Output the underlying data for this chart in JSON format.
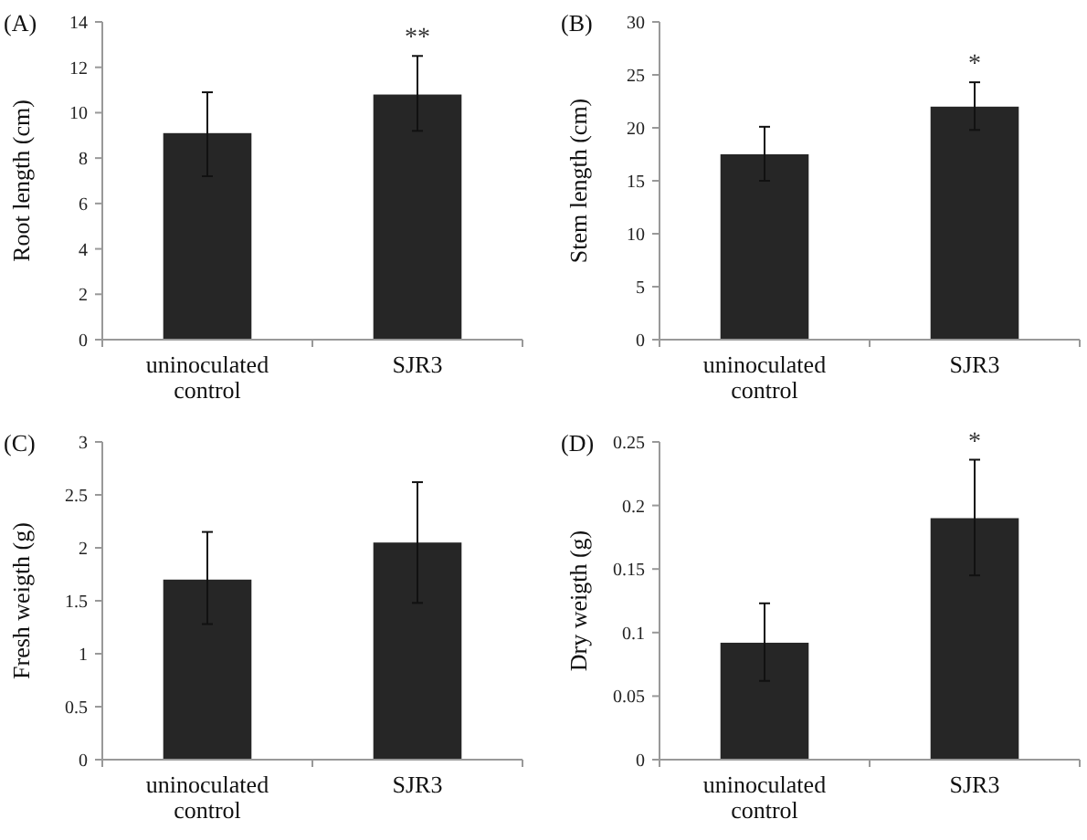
{
  "chart_data": [
    {
      "type": "bar",
      "title": "(A)",
      "ylabel": "Root length (cm)",
      "categories": [
        "uninoculated control",
        "SJR3"
      ],
      "values": [
        9.1,
        10.8
      ],
      "errors": [
        [
          7.2,
          10.9
        ],
        [
          9.2,
          12.5
        ]
      ],
      "color": "#262626",
      "ylim": [
        0,
        14
      ],
      "yticks": [
        0,
        2,
        4,
        6,
        8,
        10,
        12,
        14
      ],
      "annotations": [
        "**"
      ]
    },
    {
      "type": "bar",
      "title": "(B)",
      "ylabel": "Stem length (cm)",
      "categories": [
        "uninoculated control",
        "SJR3"
      ],
      "values": [
        17.5,
        22
      ],
      "errors": [
        [
          15,
          20.1
        ],
        [
          19.8,
          24.3
        ]
      ],
      "color": "#262626",
      "ylim": [
        0,
        30
      ],
      "yticks": [
        0,
        5,
        10,
        15,
        20,
        25,
        30
      ],
      "annotations": [
        "*"
      ]
    },
    {
      "type": "bar",
      "title": "(C)",
      "ylabel": "Fresh weigth (g)",
      "categories": [
        "uninoculated control",
        "SJR3"
      ],
      "values": [
        1.7,
        2.05
      ],
      "errors": [
        [
          1.28,
          2.15
        ],
        [
          1.48,
          2.62
        ]
      ],
      "color": "#262626",
      "ylim": [
        0,
        3
      ],
      "yticks": [
        0,
        0.5,
        1,
        1.5,
        2,
        2.5,
        3
      ]
    },
    {
      "type": "bar",
      "title": "(D)",
      "ylabel": "Dry weigth (g)",
      "categories": [
        "uninoculated control",
        "SJR3"
      ],
      "values": [
        0.092,
        0.19
      ],
      "errors": [
        [
          0.062,
          0.123
        ],
        [
          0.145,
          0.236
        ]
      ],
      "color": "#262626",
      "ylim": [
        0,
        0.25
      ],
      "yticks": [
        0,
        0.05,
        0.1,
        0.15,
        0.2,
        0.25
      ],
      "annotations": [
        "*"
      ]
    }
  ]
}
